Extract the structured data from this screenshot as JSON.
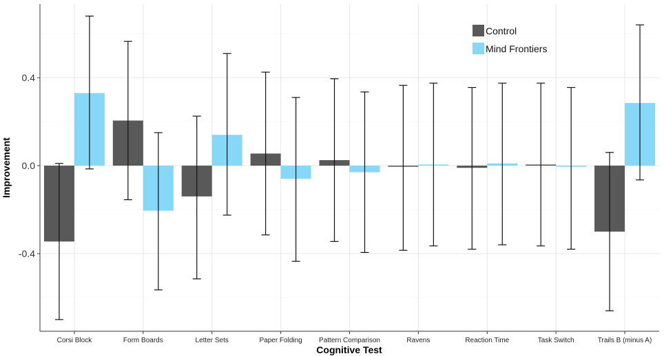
{
  "chart_data": {
    "type": "bar",
    "title": "",
    "xlabel": "Cognitive Test",
    "ylabel": "Improvement",
    "ylim": [
      -0.76,
      0.72
    ],
    "yticks": [
      0.4,
      0.0,
      -0.4
    ],
    "ytick_labels": [
      "0.4",
      "0.0",
      "-0.4"
    ],
    "grid": true,
    "legend_position": "top-right",
    "categories": [
      "Corsi Block",
      "Form Boards",
      "Letter Sets",
      "Paper Folding",
      "Pattern Comparison",
      "Ravens",
      "Reaction Time",
      "Task Switch",
      "Trails B (minus A)"
    ],
    "series": [
      {
        "name": "Control",
        "color": "#595959",
        "values": [
          -0.345,
          0.205,
          -0.14,
          0.055,
          0.025,
          -0.005,
          -0.01,
          0.005,
          -0.3
        ],
        "err_low": [
          -0.7,
          -0.155,
          -0.515,
          -0.315,
          -0.345,
          -0.385,
          -0.38,
          -0.365,
          -0.66
        ],
        "err_high": [
          0.01,
          0.565,
          0.225,
          0.425,
          0.395,
          0.365,
          0.355,
          0.375,
          0.06
        ]
      },
      {
        "name": "Mind Frontiers",
        "color": "#87d7f7",
        "values": [
          0.33,
          -0.205,
          0.14,
          -0.06,
          -0.03,
          0.005,
          0.01,
          -0.005,
          0.285
        ],
        "err_low": [
          -0.015,
          -0.565,
          -0.225,
          -0.435,
          -0.395,
          -0.365,
          -0.36,
          -0.38,
          -0.065
        ],
        "err_high": [
          0.68,
          0.15,
          0.51,
          0.31,
          0.335,
          0.375,
          0.375,
          0.355,
          0.64
        ]
      }
    ]
  }
}
